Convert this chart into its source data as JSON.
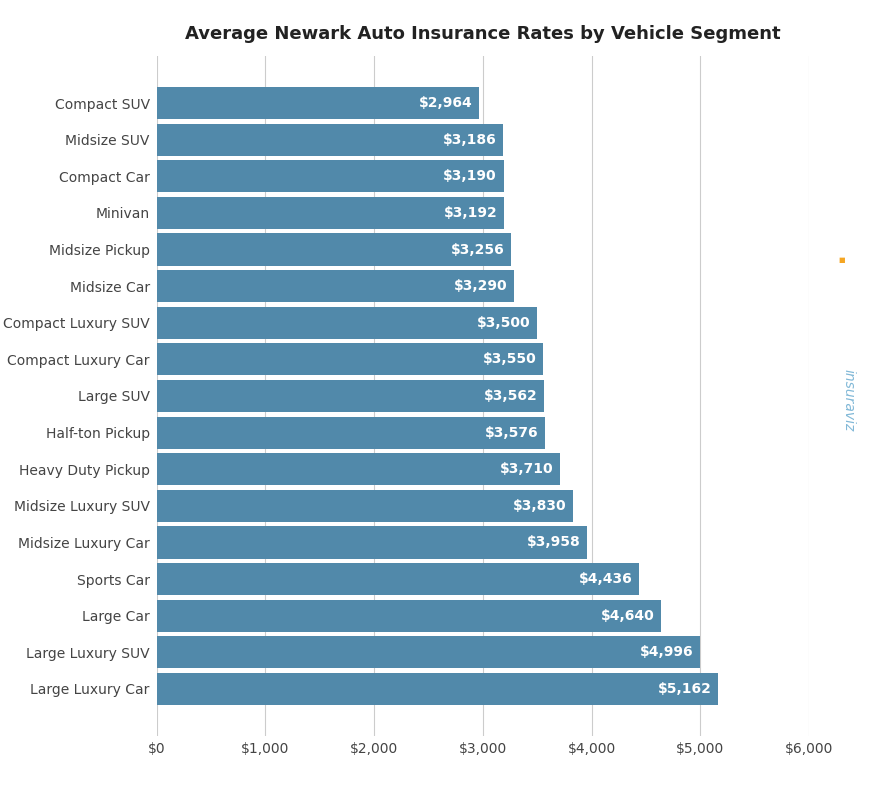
{
  "title": "Average Newark Auto Insurance Rates by Vehicle Segment",
  "categories": [
    "Compact SUV",
    "Midsize SUV",
    "Compact Car",
    "Minivan",
    "Midsize Pickup",
    "Midsize Car",
    "Compact Luxury SUV",
    "Compact Luxury Car",
    "Large SUV",
    "Half-ton Pickup",
    "Heavy Duty Pickup",
    "Midsize Luxury SUV",
    "Midsize Luxury Car",
    "Sports Car",
    "Large Car",
    "Large Luxury SUV",
    "Large Luxury Car"
  ],
  "values": [
    2964,
    3186,
    3190,
    3192,
    3256,
    3290,
    3500,
    3550,
    3562,
    3576,
    3710,
    3830,
    3958,
    4436,
    4640,
    4996,
    5162
  ],
  "bar_color": "#5189aa",
  "label_color": "#ffffff",
  "background_color": "#ffffff",
  "grid_color": "#cccccc",
  "title_fontsize": 13,
  "label_fontsize": 10,
  "tick_fontsize": 10,
  "xlim": [
    0,
    6000
  ],
  "xticks": [
    0,
    1000,
    2000,
    3000,
    4000,
    5000,
    6000
  ],
  "xtick_labels": [
    "$0",
    "$1,000",
    "$2,000",
    "$3,000",
    "$4,000",
    "$5,000",
    "$6,000"
  ],
  "watermark_text": "insuraviz",
  "watermark_color": "#6bacd0",
  "watermark_dot_color": "#f5a623"
}
